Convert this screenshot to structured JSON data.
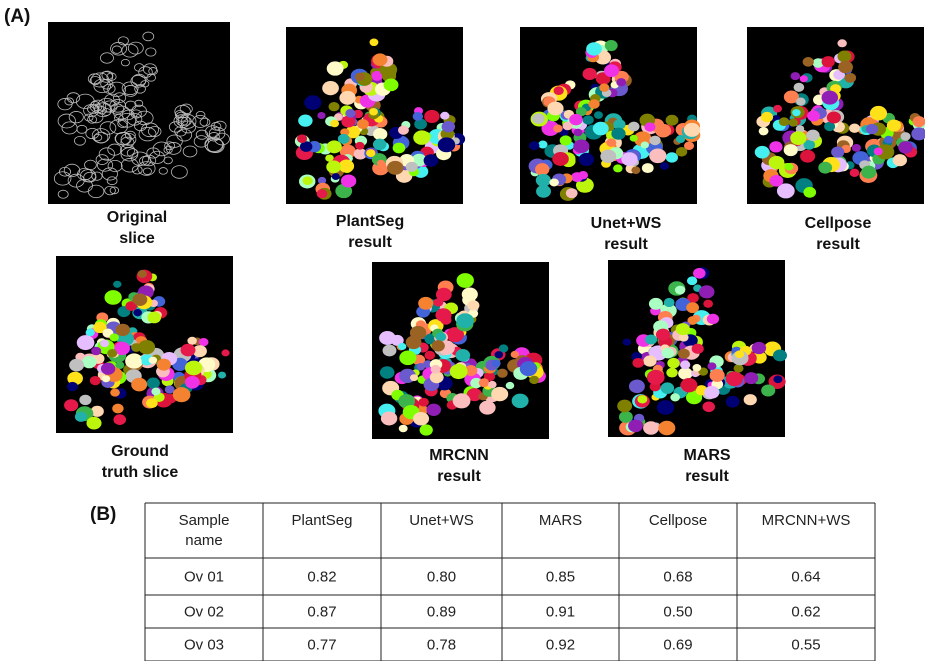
{
  "panel_a": {
    "label": "(A)",
    "images": [
      {
        "caption": [
          "Original",
          "slice"
        ]
      },
      {
        "caption": [
          "PlantSeg",
          "result"
        ]
      },
      {
        "caption": [
          "Unet+WS",
          "result"
        ]
      },
      {
        "caption": [
          "Cellpose",
          "result"
        ]
      },
      {
        "caption": [
          "Ground",
          "truth slice"
        ]
      },
      {
        "caption": [
          "MRCNN",
          "result"
        ]
      },
      {
        "caption": [
          "MARS",
          "result"
        ]
      }
    ]
  },
  "panel_b": {
    "label": "(B)",
    "table": {
      "header": [
        [
          "Sample",
          "name"
        ],
        [
          "PlantSeg"
        ],
        [
          "Unet+WS"
        ],
        [
          "MARS"
        ],
        [
          "Cellpose"
        ],
        [
          "MRCNN+WS"
        ]
      ],
      "rows": [
        [
          "Ov 01",
          "0.82",
          "0.80",
          "0.85",
          "0.68",
          "0.64"
        ],
        [
          "Ov 02",
          "0.87",
          "0.89",
          "0.91",
          "0.50",
          "0.62"
        ],
        [
          "Ov 03",
          "0.77",
          "0.78",
          "0.92",
          "0.69",
          "0.55"
        ]
      ]
    }
  }
}
